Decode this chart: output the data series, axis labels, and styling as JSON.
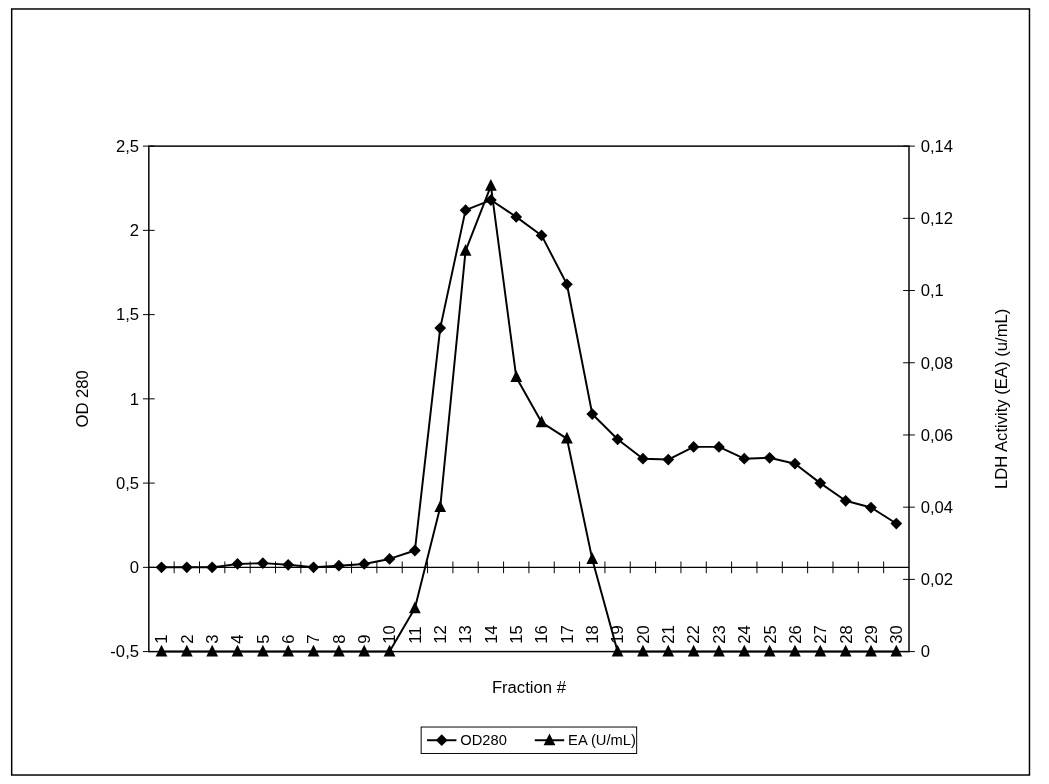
{
  "chart_data": {
    "type": "line",
    "xlabel": "Fraction #",
    "ylabel": "OD 280",
    "y2label": "LDH Activity (EA) (u/mL)",
    "categories": [
      "1",
      "2",
      "3",
      "4",
      "5",
      "6",
      "7",
      "8",
      "9",
      "10",
      "11",
      "12",
      "13",
      "14",
      "15",
      "16",
      "17",
      "18",
      "19",
      "20",
      "21",
      "22",
      "23",
      "24",
      "25",
      "26",
      "27",
      "28",
      "29",
      "30"
    ],
    "series": [
      {
        "name": "OD280",
        "color": "#000000",
        "marker": "diamond",
        "values": [
          0,
          0,
          0,
          0.02,
          0.025,
          0.015,
          0,
          0.01,
          0.02,
          0.05,
          0.1,
          1.42,
          2.12,
          2.18,
          2.08,
          1.97,
          1.68,
          0.91,
          0.76,
          0.645,
          0.64,
          0.715,
          0.715,
          0.645,
          0.65,
          0.615,
          0.5,
          0.395,
          0.355,
          0.26
        ]
      },
      {
        "name": "EA (U/mL)",
        "color": "#000000",
        "marker": "triangle",
        "axis": "y2",
        "values": [
          0,
          0,
          0,
          0,
          0,
          0,
          0,
          0,
          0,
          0,
          0.012,
          0.04,
          0.111,
          0.129,
          0.076,
          0.0635,
          0.059,
          0.0256,
          0,
          0,
          0,
          0,
          0,
          0,
          0,
          0,
          0,
          0,
          0,
          0
        ]
      }
    ],
    "ylim": [
      -0.5,
      2.5
    ],
    "yticks": [
      {
        "value": -0.5,
        "label": "-0,5"
      },
      0,
      {
        "value": 0.5,
        "label": "0,5"
      },
      1,
      {
        "value": 1.5,
        "label": "1,5"
      },
      2,
      {
        "value": 2.5,
        "label": "2,5"
      }
    ],
    "y2lim": [
      0,
      0.14
    ],
    "y2ticks": [
      0,
      {
        "value": 0.02,
        "label": "0,02"
      },
      {
        "value": 0.04,
        "label": "0,04"
      },
      {
        "value": 0.06,
        "label": "0,06"
      },
      {
        "value": 0.08,
        "label": "0,08"
      },
      {
        "value": 0.1,
        "label": "0,1"
      },
      {
        "value": 0.12,
        "label": "0,12"
      },
      {
        "value": 0.14,
        "label": "0,14"
      }
    ],
    "legend": "bottom"
  }
}
